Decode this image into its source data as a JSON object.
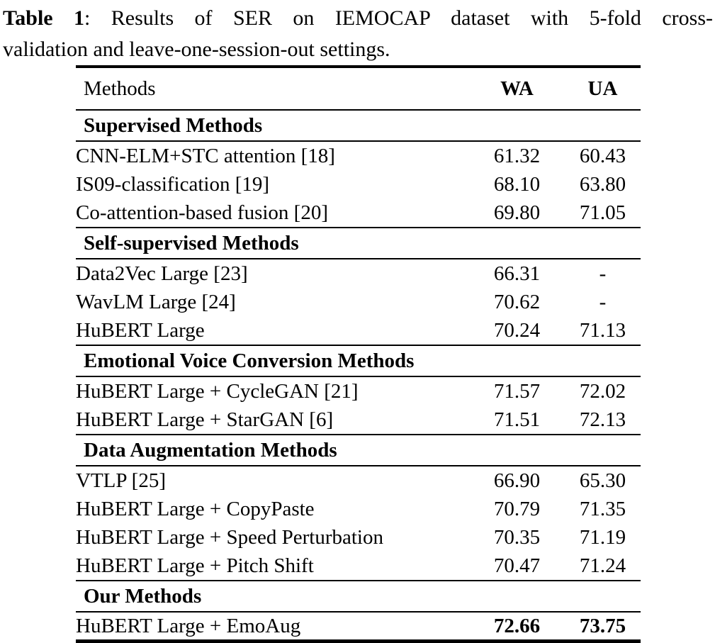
{
  "caption": {
    "label": "Table 1",
    "line1_rest": ":  Results of SER on IEMOCAP dataset with 5-fold cross-",
    "line2": "validation and leave-one-session-out settings."
  },
  "colors": {
    "text": "#000000",
    "background": "#ffffff",
    "rule": "#000000"
  },
  "table": {
    "columns": {
      "methods": "Methods",
      "wa": "WA",
      "ua": "UA"
    },
    "sections": [
      {
        "title": "Supervised Methods",
        "rows": [
          {
            "method": "CNN-ELM+STC attention [18]",
            "wa": "61.32",
            "ua": "60.43"
          },
          {
            "method": "IS09-classification [19]",
            "wa": "68.10",
            "ua": "63.80"
          },
          {
            "method": "Co-attention-based fusion [20]",
            "wa": "69.80",
            "ua": "71.05"
          }
        ]
      },
      {
        "title": "Self-supervised Methods",
        "rows": [
          {
            "method": "Data2Vec Large [23]",
            "wa": "66.31",
            "ua": "-"
          },
          {
            "method": "WavLM Large [24]",
            "wa": "70.62",
            "ua": "-"
          },
          {
            "method": "HuBERT Large",
            "wa": "70.24",
            "ua": "71.13"
          }
        ]
      },
      {
        "title": "Emotional Voice Conversion Methods",
        "rows": [
          {
            "method": "HuBERT Large + CycleGAN [21]",
            "wa": "71.57",
            "ua": "72.02"
          },
          {
            "method": "HuBERT Large + StarGAN [6]",
            "wa": "71.51",
            "ua": "72.13"
          }
        ]
      },
      {
        "title": "Data Augmentation Methods",
        "rows": [
          {
            "method": "VTLP [25]",
            "wa": "66.90",
            "ua": "65.30"
          },
          {
            "method": "HuBERT Large + CopyPaste",
            "wa": "70.79",
            "ua": "71.35"
          },
          {
            "method": "HuBERT Large + Speed Perturbation",
            "wa": "70.35",
            "ua": "71.19"
          },
          {
            "method": "HuBERT Large + Pitch Shift",
            "wa": "70.47",
            "ua": "71.24"
          }
        ]
      },
      {
        "title": "Our Methods",
        "rows": [
          {
            "method": "HuBERT Large + EmoAug",
            "wa": "72.66",
            "ua": "73.75",
            "bold_values": true
          }
        ]
      }
    ]
  }
}
